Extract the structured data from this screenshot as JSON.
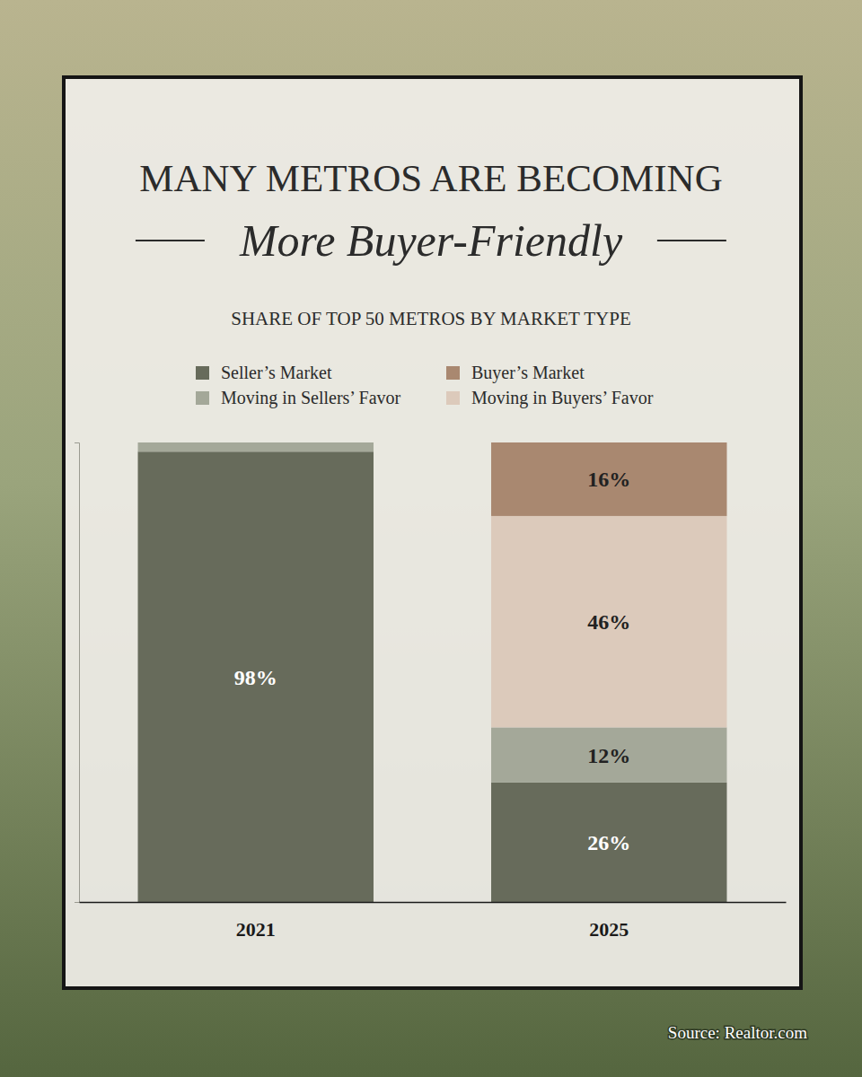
{
  "chart_data": {
    "type": "bar",
    "stacked": true,
    "data_labels": true,
    "tick_labels": "x",
    "legend": "top",
    "grid": false,
    "title": "MANY METROS ARE BECOMING",
    "subtitle": "More Buyer-Friendly",
    "annotations": [
      "SHARE OF TOP 50 METROS BY MARKET TYPE",
      "Source: Realtor.com"
    ],
    "categories": [
      "2021",
      "2025"
    ],
    "ylim": [
      0,
      100
    ],
    "yticks": [
      0,
      100
    ],
    "series": [
      {
        "name": "Seller’s Market",
        "color": "#676b5b",
        "values": [
          98,
          26
        ],
        "value_labels": [
          "98%",
          "26%"
        ]
      },
      {
        "name": "Moving in Sellers’ Favor",
        "color": "#a4a899",
        "values": [
          2,
          12
        ],
        "value_labels": [
          null,
          "12%"
        ]
      },
      {
        "name": "Moving in Buyers’ Favor",
        "color": "#dccabb",
        "values": [
          0,
          46
        ],
        "value_labels": [
          null,
          "46%"
        ]
      },
      {
        "name": "Buyer’s Market",
        "color": "#a98870",
        "values": [
          0,
          16
        ],
        "value_labels": [
          null,
          "16%"
        ]
      }
    ]
  }
}
